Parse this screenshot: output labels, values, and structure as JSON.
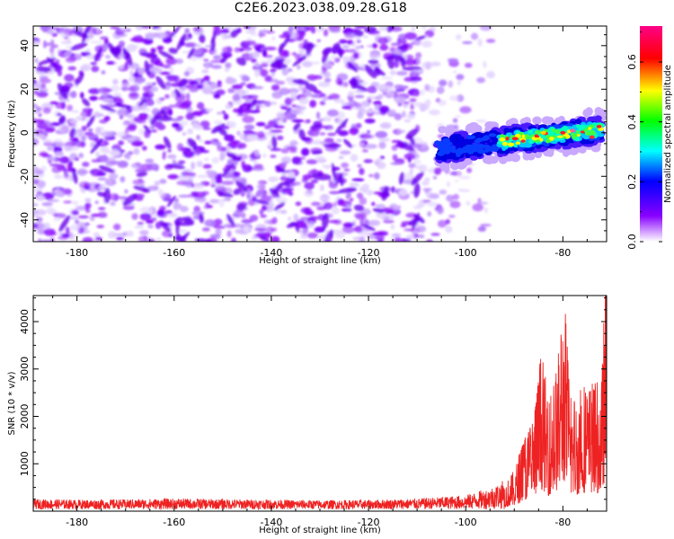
{
  "title": "C2E6.2023.038.09.28.G18",
  "colors": {
    "snr_line": "#ee2222",
    "spectrogram_background": "#ffffff"
  },
  "chart_data": [
    {
      "type": "heatmap",
      "xlabel": "Height of straight line (km)",
      "ylabel": "Frequency (Hz)",
      "xlim": [
        -189,
        -71
      ],
      "ylim": [
        -50,
        49
      ],
      "x_ticks": [
        -180,
        -160,
        -140,
        -120,
        -100,
        -80
      ],
      "y_ticks": [
        -40,
        -20,
        0,
        20,
        40
      ],
      "colorbar": {
        "label": "Normalized spectral amplitude",
        "range": [
          0.0,
          0.72
        ],
        "ticks": [
          0.0,
          0.2,
          0.4,
          0.6
        ],
        "colormap": [
          "#ffffff",
          "#8800ff",
          "#0000ff",
          "#00ffff",
          "#00ff00",
          "#ffff00",
          "#ff0000",
          "#ff0088"
        ]
      },
      "regions": [
        {
          "x_range": [
            -189,
            -100
          ],
          "freq_range": [
            -50,
            49
          ],
          "amplitude": "noise 0.0-0.15"
        },
        {
          "x_range": [
            -100,
            -71
          ],
          "freq_range": [
            -10,
            5
          ],
          "amplitude": "signal 0.2-0.7"
        }
      ]
    },
    {
      "type": "line",
      "xlabel": "Height of straight line (km)",
      "ylabel": "SNR (10 * v/v)",
      "xlim": [
        -189,
        -71
      ],
      "ylim": [
        0,
        4550
      ],
      "x_ticks": [
        -180,
        -160,
        -140,
        -120,
        -100,
        -80
      ],
      "y_ticks": [
        1000,
        2000,
        3000,
        4000
      ],
      "series": [
        {
          "x": [
            -189,
            -180,
            -170,
            -160,
            -150,
            -140,
            -130,
            -120,
            -110,
            -100,
            -95,
            -92,
            -90,
            -88,
            -86,
            -84.5,
            -83,
            -82,
            -81,
            -80.2,
            -79.5,
            -78.5,
            -77,
            -76,
            -75,
            -74,
            -73,
            -72,
            -71.3
          ],
          "y": [
            180,
            170,
            175,
            190,
            180,
            170,
            160,
            165,
            190,
            250,
            380,
            520,
            800,
            1500,
            1900,
            3200,
            2200,
            2600,
            3000,
            4300,
            4000,
            2400,
            2300,
            2700,
            2400,
            2600,
            2500,
            2600,
            4550
          ]
        }
      ]
    }
  ]
}
